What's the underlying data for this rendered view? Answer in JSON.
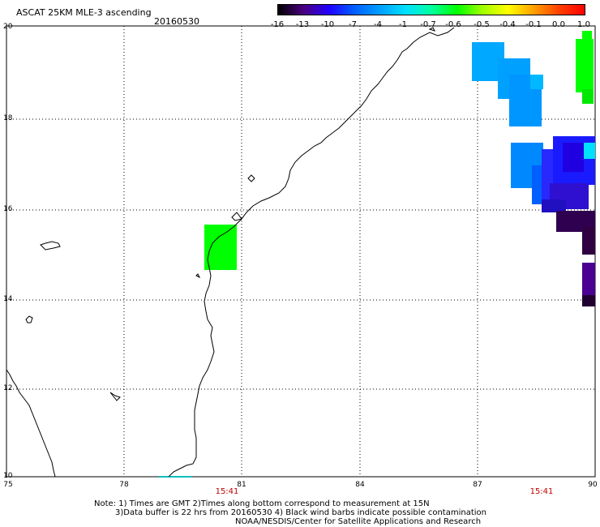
{
  "header": {
    "title": "ASCAT 25KM MLE-3 ascending",
    "date": "20160530"
  },
  "colorbar": {
    "labels": [
      "-16",
      "-13",
      "-10",
      "-7",
      "-4",
      "-1",
      "-0.7",
      "-0.6",
      "-0.5",
      "-0.4",
      "-0.1",
      "0.0",
      "1.0"
    ],
    "colors": [
      "#000000",
      "#4a0080",
      "#2000ff",
      "#0060ff",
      "#00a0ff",
      "#00e0ff",
      "#00ffa0",
      "#00ff00",
      "#a0ff00",
      "#ffff00",
      "#ffa000",
      "#ff4000",
      "#ff0000"
    ]
  },
  "axes": {
    "y_ticks": [
      "20",
      "18",
      "16",
      "14",
      "12",
      "10"
    ],
    "x_ticks": [
      "75",
      "78",
      "81",
      "84",
      "87",
      "90"
    ],
    "times": [
      "15:41",
      "15:41"
    ]
  },
  "notes": {
    "line1": "Note: 1) Times are GMT 2)Times along bottom correspond to measurement at 15N",
    "line2": "3)Data buffer is 22 hrs from 20160530 4) Black wind barbs indicate possible contamination",
    "line3": "NOAA/NESDIS/Center for Satellite Applications and Research"
  }
}
